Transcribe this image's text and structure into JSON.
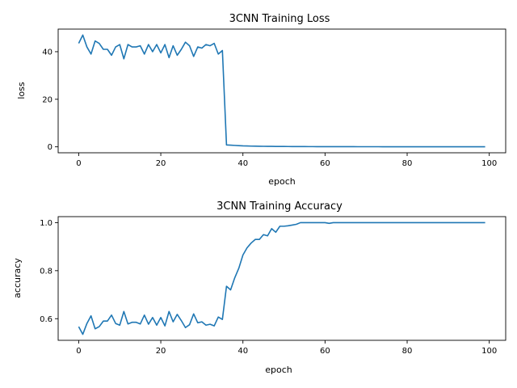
{
  "chart_data": [
    {
      "type": "line",
      "title": "3CNN Training Loss",
      "xlabel": "epoch",
      "ylabel": "loss",
      "xlim": [
        -5,
        104
      ],
      "ylim": [
        -2.5,
        49.5
      ],
      "xticks": [
        0,
        20,
        40,
        60,
        80,
        100
      ],
      "yticks": [
        0,
        20,
        40
      ],
      "grid": false,
      "color": "#1f77b4",
      "x": [
        0,
        1,
        2,
        3,
        4,
        5,
        6,
        7,
        8,
        9,
        10,
        11,
        12,
        13,
        14,
        15,
        16,
        17,
        18,
        19,
        20,
        21,
        22,
        23,
        24,
        25,
        26,
        27,
        28,
        29,
        30,
        31,
        32,
        33,
        34,
        35,
        36,
        37,
        38,
        39,
        40,
        41,
        42,
        43,
        44,
        45,
        46,
        47,
        48,
        49,
        50,
        51,
        52,
        53,
        54,
        55,
        56,
        57,
        58,
        59,
        60,
        61,
        62,
        63,
        64,
        65,
        66,
        67,
        68,
        69,
        70,
        71,
        72,
        73,
        74,
        75,
        76,
        77,
        78,
        79,
        80,
        81,
        82,
        83,
        84,
        85,
        86,
        87,
        88,
        89,
        90,
        91,
        92,
        93,
        94,
        95,
        96,
        97,
        98,
        99
      ],
      "y": [
        43.5,
        47,
        42,
        39,
        44.5,
        43.5,
        41,
        41,
        38.5,
        42,
        43,
        37,
        43,
        42,
        42,
        42.5,
        39,
        43,
        40,
        43,
        39.5,
        43,
        37.5,
        42.5,
        38.5,
        41,
        44,
        42.5,
        38,
        42,
        41.5,
        43,
        42.5,
        43.5,
        39,
        40.5,
        0.8,
        0.7,
        0.6,
        0.5,
        0.4,
        0.35,
        0.3,
        0.28,
        0.25,
        0.22,
        0.2,
        0.18,
        0.16,
        0.15,
        0.14,
        0.13,
        0.12,
        0.11,
        0.1,
        0.1,
        0.09,
        0.09,
        0.08,
        0.08,
        0.08,
        0.07,
        0.07,
        0.07,
        0.06,
        0.06,
        0.06,
        0.06,
        0.05,
        0.05,
        0.05,
        0.05,
        0.05,
        0.05,
        0.04,
        0.04,
        0.04,
        0.04,
        0.04,
        0.04,
        0.04,
        0.04,
        0.04,
        0.03,
        0.03,
        0.03,
        0.03,
        0.03,
        0.03,
        0.03,
        0.03,
        0.03,
        0.03,
        0.03,
        0.03,
        0.03,
        0.03,
        0.03,
        0.03,
        0.02
      ]
    },
    {
      "type": "line",
      "title": "3CNN Training Accuracy",
      "xlabel": "epoch",
      "ylabel": "accuracy",
      "xlim": [
        -5,
        104
      ],
      "ylim": [
        0.51,
        1.025
      ],
      "xticks": [
        0,
        20,
        40,
        60,
        80,
        100
      ],
      "yticks": [
        0.6,
        0.8,
        1.0
      ],
      "grid": false,
      "color": "#1f77b4",
      "x": [
        0,
        1,
        2,
        3,
        4,
        5,
        6,
        7,
        8,
        9,
        10,
        11,
        12,
        13,
        14,
        15,
        16,
        17,
        18,
        19,
        20,
        21,
        22,
        23,
        24,
        25,
        26,
        27,
        28,
        29,
        30,
        31,
        32,
        33,
        34,
        35,
        36,
        37,
        38,
        39,
        40,
        41,
        42,
        43,
        44,
        45,
        46,
        47,
        48,
        49,
        50,
        51,
        52,
        53,
        54,
        55,
        56,
        57,
        58,
        59,
        60,
        61,
        62,
        63,
        64,
        65,
        66,
        67,
        68,
        69,
        70,
        71,
        72,
        73,
        74,
        75,
        76,
        77,
        78,
        79,
        80,
        81,
        82,
        83,
        84,
        85,
        86,
        87,
        88,
        89,
        90,
        91,
        92,
        93,
        94,
        95,
        96,
        97,
        98,
        99
      ],
      "y": [
        0.567,
        0.535,
        0.58,
        0.612,
        0.558,
        0.567,
        0.59,
        0.59,
        0.615,
        0.58,
        0.573,
        0.63,
        0.578,
        0.585,
        0.585,
        0.578,
        0.615,
        0.577,
        0.605,
        0.573,
        0.605,
        0.57,
        0.63,
        0.587,
        0.618,
        0.592,
        0.563,
        0.575,
        0.62,
        0.583,
        0.587,
        0.573,
        0.577,
        0.57,
        0.607,
        0.597,
        0.735,
        0.72,
        0.77,
        0.81,
        0.865,
        0.895,
        0.915,
        0.93,
        0.93,
        0.95,
        0.945,
        0.975,
        0.96,
        0.985,
        0.985,
        0.987,
        0.99,
        0.993,
        1.0,
        1.0,
        1.0,
        1.0,
        1.0,
        1.0,
        1.0,
        0.997,
        1.0,
        1.0,
        1.0,
        1.0,
        1.0,
        1.0,
        1.0,
        1.0,
        1.0,
        1.0,
        1.0,
        1.0,
        1.0,
        1.0,
        1.0,
        1.0,
        1.0,
        1.0,
        1.0,
        1.0,
        1.0,
        1.0,
        1.0,
        1.0,
        1.0,
        1.0,
        1.0,
        1.0,
        1.0,
        1.0,
        1.0,
        1.0,
        1.0,
        1.0,
        1.0,
        1.0,
        1.0,
        1.0
      ]
    }
  ]
}
